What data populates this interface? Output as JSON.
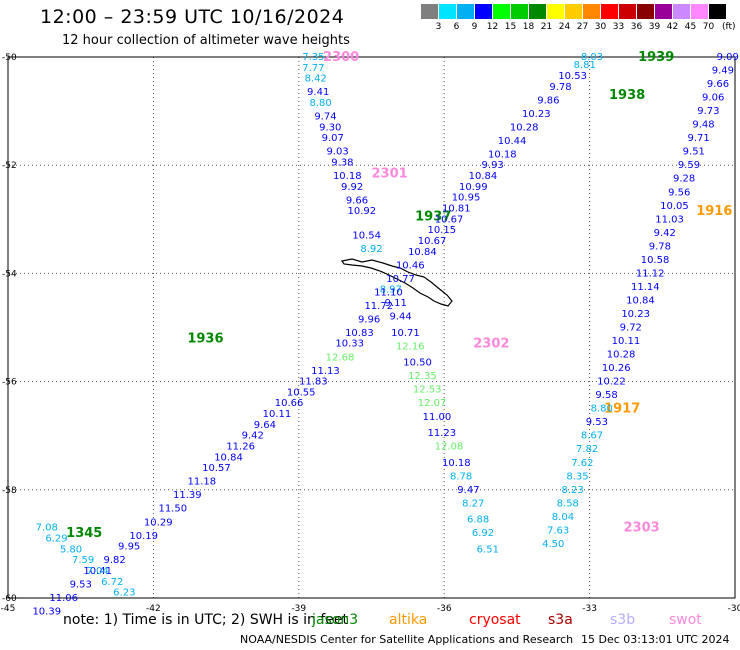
{
  "title": "12:00 – 23:59 UTC 10/16/2024",
  "subtitle": "12 hour collection of altimeter wave heights",
  "legend": {
    "unit": "(ft)",
    "bins": [
      {
        "label": "3",
        "color": "#7f7f7f"
      },
      {
        "label": "6",
        "color": "#00e5ff"
      },
      {
        "label": "9",
        "color": "#00b0f0"
      },
      {
        "label": "12",
        "color": "#0000ff"
      },
      {
        "label": "15",
        "color": "#00ff00"
      },
      {
        "label": "18",
        "color": "#00cc00"
      },
      {
        "label": "21",
        "color": "#008800"
      },
      {
        "label": "24",
        "color": "#ffff00"
      },
      {
        "label": "27",
        "color": "#ffcc00"
      },
      {
        "label": "30",
        "color": "#ff8800"
      },
      {
        "label": "33",
        "color": "#ff0000"
      },
      {
        "label": "36",
        "color": "#cc0000"
      },
      {
        "label": "39",
        "color": "#880000"
      },
      {
        "label": "42",
        "color": "#990099"
      },
      {
        "label": "45",
        "color": "#cc88ff"
      },
      {
        "label": "70",
        "color": "#ff88ff"
      },
      {
        "label": "",
        "color": "#000000"
      }
    ]
  },
  "note": "note:  1) Time is in UTC; 2) SWH is in feet",
  "missions": [
    {
      "name": "jason3",
      "color": "#008800"
    },
    {
      "name": "altika",
      "color": "#ff9900"
    },
    {
      "name": "cryosat",
      "color": "#ff0000"
    },
    {
      "name": "s3a",
      "color": "#aa0000"
    },
    {
      "name": "s3b",
      "color": "#bbaaff"
    },
    {
      "name": "swot",
      "color": "#ff88dd"
    }
  ],
  "credit": "NOAA/NESDIS Center for Satellite Applications and Research",
  "timestamp": "15 Dec 03:13:01 UTC 2024",
  "chart_data": {
    "type": "scatter",
    "xlim": [
      -45,
      -30
    ],
    "ylim": [
      -60,
      -50
    ],
    "x_ticks": [
      "-45",
      "-42",
      "-39",
      "-36",
      "-33",
      "-30"
    ],
    "y_ticks": [
      "-50",
      "-52",
      "-54",
      "-56",
      "-58",
      "-60"
    ],
    "grid": "dotted",
    "tracks": [
      {
        "time": "2300",
        "color": "#ff88dd",
        "at": [
          -38.5,
          -50.0
        ]
      },
      {
        "time": "2301",
        "color": "#ff88dd",
        "at": [
          -37.5,
          -52.15
        ]
      },
      {
        "time": "2302",
        "color": "#ff88dd",
        "at": [
          -35.4,
          -55.3
        ]
      },
      {
        "time": "2303",
        "color": "#ff88dd",
        "at": [
          -32.3,
          -58.7
        ]
      },
      {
        "time": "1939",
        "color": "#008800",
        "at": [
          -32.0,
          -50.0
        ]
      },
      {
        "time": "1938",
        "color": "#008800",
        "at": [
          -32.6,
          -50.7
        ]
      },
      {
        "time": "1937",
        "color": "#008800",
        "at": [
          -36.6,
          -52.95
        ]
      },
      {
        "time": "1936",
        "color": "#008800",
        "at": [
          -41.3,
          -55.2
        ]
      },
      {
        "time": "1345",
        "color": "#008800",
        "at": [
          -43.8,
          -58.8
        ]
      },
      {
        "time": "1916",
        "color": "#ff9900",
        "at": [
          -30.8,
          -52.85
        ]
      },
      {
        "time": "1917",
        "color": "#ff9900",
        "at": [
          -32.7,
          -56.5
        ]
      }
    ],
    "points": [
      {
        "x": -38.7,
        "y": -50.0,
        "v": "7.35",
        "c": "#00b0f0"
      },
      {
        "x": -38.7,
        "y": -50.2,
        "v": "7.77",
        "c": "#00b0f0"
      },
      {
        "x": -38.65,
        "y": -50.4,
        "v": "8.42",
        "c": "#00b0f0"
      },
      {
        "x": -38.6,
        "y": -50.65,
        "v": "9.41",
        "c": "#0000ff"
      },
      {
        "x": -38.55,
        "y": -50.85,
        "v": "8.80",
        "c": "#00b0f0"
      },
      {
        "x": -38.45,
        "y": -51.1,
        "v": "9.74",
        "c": "#0000ff"
      },
      {
        "x": -38.35,
        "y": -51.3,
        "v": "9.30",
        "c": "#0000ff"
      },
      {
        "x": -38.3,
        "y": -51.5,
        "v": "9.07",
        "c": "#0000ff"
      },
      {
        "x": -38.2,
        "y": -51.75,
        "v": "9.03",
        "c": "#0000ff"
      },
      {
        "x": -38.1,
        "y": -51.95,
        "v": "9.38",
        "c": "#0000ff"
      },
      {
        "x": -38.0,
        "y": -52.2,
        "v": "10.18",
        "c": "#0000ff"
      },
      {
        "x": -37.9,
        "y": -52.4,
        "v": "9.92",
        "c": "#0000ff"
      },
      {
        "x": -37.8,
        "y": -52.65,
        "v": "9.66",
        "c": "#0000ff"
      },
      {
        "x": -37.7,
        "y": -52.85,
        "v": "10.92",
        "c": "#0000ff"
      },
      {
        "x": -37.6,
        "y": -53.3,
        "v": "10.54",
        "c": "#0000ff"
      },
      {
        "x": -37.5,
        "y": -53.55,
        "v": "8.92",
        "c": "#00b0f0"
      },
      {
        "x": -37.1,
        "y": -54.3,
        "v": "8.97",
        "c": "#00b0f0"
      },
      {
        "x": -37.0,
        "y": -54.55,
        "v": "9.11",
        "c": "#0000ff"
      },
      {
        "x": -36.9,
        "y": -54.8,
        "v": "9.44",
        "c": "#0000ff"
      },
      {
        "x": -36.8,
        "y": -55.1,
        "v": "10.71",
        "c": "#0000ff"
      },
      {
        "x": -36.7,
        "y": -55.35,
        "v": "12.16",
        "c": "#66ee66"
      },
      {
        "x": -36.55,
        "y": -55.65,
        "v": "10.50",
        "c": "#0000ff"
      },
      {
        "x": -36.45,
        "y": -55.9,
        "v": "12.35",
        "c": "#66ee66"
      },
      {
        "x": -36.35,
        "y": -56.15,
        "v": "12.53",
        "c": "#66ee66"
      },
      {
        "x": -36.25,
        "y": -56.4,
        "v": "12.07",
        "c": "#66ee66"
      },
      {
        "x": -36.15,
        "y": -56.65,
        "v": "11.00",
        "c": "#0000ff"
      },
      {
        "x": -36.05,
        "y": -56.95,
        "v": "11.23",
        "c": "#0000ff"
      },
      {
        "x": -35.9,
        "y": -57.2,
        "v": "12.08",
        "c": "#66ee66"
      },
      {
        "x": -35.75,
        "y": -57.5,
        "v": "10.18",
        "c": "#0000ff"
      },
      {
        "x": -35.65,
        "y": -57.75,
        "v": "8.78",
        "c": "#00b0f0"
      },
      {
        "x": -35.5,
        "y": -58.0,
        "v": "9.47",
        "c": "#0000ff"
      },
      {
        "x": -35.4,
        "y": -58.25,
        "v": "8.27",
        "c": "#00b0f0"
      },
      {
        "x": -35.3,
        "y": -58.55,
        "v": "6.88",
        "c": "#00b0f0"
      },
      {
        "x": -35.2,
        "y": -58.8,
        "v": "6.92",
        "c": "#00b0f0"
      },
      {
        "x": -35.1,
        "y": -59.1,
        "v": "6.51",
        "c": "#00b0f0"
      },
      {
        "x": -32.95,
        "y": -50.0,
        "v": "8.03",
        "c": "#00b0f0"
      },
      {
        "x": -33.1,
        "y": -50.15,
        "v": "8.81",
        "c": "#00b0f0"
      },
      {
        "x": -33.35,
        "y": -50.35,
        "v": "10.53",
        "c": "#0000ff"
      },
      {
        "x": -33.6,
        "y": -50.55,
        "v": "9.78",
        "c": "#0000ff"
      },
      {
        "x": -33.85,
        "y": -50.8,
        "v": "9.86",
        "c": "#0000ff"
      },
      {
        "x": -34.1,
        "y": -51.05,
        "v": "10.23",
        "c": "#0000ff"
      },
      {
        "x": -34.35,
        "y": -51.3,
        "v": "10.28",
        "c": "#0000ff"
      },
      {
        "x": -34.6,
        "y": -51.55,
        "v": "10.44",
        "c": "#0000ff"
      },
      {
        "x": -34.8,
        "y": -51.8,
        "v": "10.18",
        "c": "#0000ff"
      },
      {
        "x": -35.0,
        "y": -52.0,
        "v": "9.93",
        "c": "#0000ff"
      },
      {
        "x": -35.2,
        "y": -52.2,
        "v": "10.84",
        "c": "#0000ff"
      },
      {
        "x": -35.4,
        "y": -52.4,
        "v": "10.99",
        "c": "#0000ff"
      },
      {
        "x": -35.55,
        "y": -52.6,
        "v": "10.95",
        "c": "#0000ff"
      },
      {
        "x": -35.75,
        "y": -52.8,
        "v": "10.81",
        "c": "#0000ff"
      },
      {
        "x": -35.9,
        "y": -53.0,
        "v": "10.67",
        "c": "#0000ff"
      },
      {
        "x": -36.05,
        "y": -53.2,
        "v": "10.15",
        "c": "#0000ff"
      },
      {
        "x": -36.25,
        "y": -53.4,
        "v": "10.67",
        "c": "#0000ff"
      },
      {
        "x": -36.45,
        "y": -53.6,
        "v": "10.84",
        "c": "#0000ff"
      },
      {
        "x": -36.7,
        "y": -53.85,
        "v": "10.46",
        "c": "#0000ff"
      },
      {
        "x": -36.9,
        "y": -54.1,
        "v": "10.77",
        "c": "#0000ff"
      },
      {
        "x": -37.15,
        "y": -54.35,
        "v": "11.10",
        "c": "#0000ff"
      },
      {
        "x": -37.35,
        "y": -54.6,
        "v": "11.72",
        "c": "#0000ff"
      },
      {
        "x": -37.55,
        "y": -54.85,
        "v": "9.96",
        "c": "#0000ff"
      },
      {
        "x": -37.75,
        "y": -55.1,
        "v": "10.83",
        "c": "#0000ff"
      },
      {
        "x": -37.95,
        "y": -55.3,
        "v": "10.33",
        "c": "#0000ff"
      },
      {
        "x": -38.15,
        "y": -55.55,
        "v": "12.68",
        "c": "#66ee66"
      },
      {
        "x": -38.45,
        "y": -55.8,
        "v": "11.13",
        "c": "#0000ff"
      },
      {
        "x": -38.7,
        "y": -56.0,
        "v": "11.83",
        "c": "#0000ff"
      },
      {
        "x": -38.95,
        "y": -56.2,
        "v": "10.55",
        "c": "#0000ff"
      },
      {
        "x": -39.2,
        "y": -56.4,
        "v": "10.66",
        "c": "#0000ff"
      },
      {
        "x": -39.45,
        "y": -56.6,
        "v": "10.11",
        "c": "#0000ff"
      },
      {
        "x": -39.7,
        "y": -56.8,
        "v": "9.64",
        "c": "#0000ff"
      },
      {
        "x": -39.95,
        "y": -57.0,
        "v": "9.42",
        "c": "#0000ff"
      },
      {
        "x": -40.2,
        "y": -57.2,
        "v": "11.26",
        "c": "#0000ff"
      },
      {
        "x": -40.45,
        "y": -57.4,
        "v": "10.84",
        "c": "#0000ff"
      },
      {
        "x": -40.7,
        "y": -57.6,
        "v": "10.57",
        "c": "#0000ff"
      },
      {
        "x": -41.0,
        "y": -57.85,
        "v": "11.18",
        "c": "#0000ff"
      },
      {
        "x": -41.3,
        "y": -58.1,
        "v": "11.39",
        "c": "#0000ff"
      },
      {
        "x": -41.6,
        "y": -58.35,
        "v": "11.50",
        "c": "#0000ff"
      },
      {
        "x": -41.9,
        "y": -58.6,
        "v": "10.29",
        "c": "#0000ff"
      },
      {
        "x": -42.2,
        "y": -58.85,
        "v": "10.19",
        "c": "#0000ff"
      },
      {
        "x": -42.5,
        "y": -59.05,
        "v": "9.95",
        "c": "#0000ff"
      },
      {
        "x": -42.8,
        "y": -59.3,
        "v": "9.82",
        "c": "#0000ff"
      },
      {
        "x": -43.15,
        "y": -59.5,
        "v": "10.41",
        "c": "#0000ff"
      },
      {
        "x": -43.5,
        "y": -59.75,
        "v": "9.53",
        "c": "#0000ff"
      },
      {
        "x": -43.85,
        "y": -60.0,
        "v": "11.06",
        "c": "#0000ff"
      },
      {
        "x": -44.2,
        "y": -60.25,
        "v": "10.39",
        "c": "#0000ff"
      },
      {
        "x": -44.2,
        "y": -58.7,
        "v": "7.08",
        "c": "#00b0f0"
      },
      {
        "x": -44.0,
        "y": -58.9,
        "v": "6.29",
        "c": "#00b0f0"
      },
      {
        "x": -43.7,
        "y": -59.1,
        "v": "5.80",
        "c": "#00b0f0"
      },
      {
        "x": -43.45,
        "y": -59.3,
        "v": "7.59",
        "c": "#00b0f0"
      },
      {
        "x": -43.15,
        "y": -59.5,
        "v": "7.04",
        "c": "#00b0f0"
      },
      {
        "x": -42.85,
        "y": -59.7,
        "v": "6.72",
        "c": "#00b0f0"
      },
      {
        "x": -42.6,
        "y": -59.9,
        "v": "6.23",
        "c": "#00b0f0"
      },
      {
        "x": -30.15,
        "y": -50.0,
        "v": "9.09",
        "c": "#0000ff"
      },
      {
        "x": -30.25,
        "y": -50.25,
        "v": "9.49",
        "c": "#0000ff"
      },
      {
        "x": -30.35,
        "y": -50.5,
        "v": "9.66",
        "c": "#0000ff"
      },
      {
        "x": -30.45,
        "y": -50.75,
        "v": "9.06",
        "c": "#0000ff"
      },
      {
        "x": -30.55,
        "y": -51.0,
        "v": "9.73",
        "c": "#0000ff"
      },
      {
        "x": -30.65,
        "y": -51.25,
        "v": "9.48",
        "c": "#0000ff"
      },
      {
        "x": -30.75,
        "y": -51.5,
        "v": "9.71",
        "c": "#0000ff"
      },
      {
        "x": -30.85,
        "y": -51.75,
        "v": "9.51",
        "c": "#0000ff"
      },
      {
        "x": -30.95,
        "y": -52.0,
        "v": "9.59",
        "c": "#0000ff"
      },
      {
        "x": -31.05,
        "y": -52.25,
        "v": "9.28",
        "c": "#0000ff"
      },
      {
        "x": -31.15,
        "y": -52.5,
        "v": "9.56",
        "c": "#0000ff"
      },
      {
        "x": -31.25,
        "y": -52.75,
        "v": "10.05",
        "c": "#0000ff"
      },
      {
        "x": -31.35,
        "y": -53.0,
        "v": "11.03",
        "c": "#0000ff"
      },
      {
        "x": -31.45,
        "y": -53.25,
        "v": "9.42",
        "c": "#0000ff"
      },
      {
        "x": -31.55,
        "y": -53.5,
        "v": "9.78",
        "c": "#0000ff"
      },
      {
        "x": -31.65,
        "y": -53.75,
        "v": "10.58",
        "c": "#0000ff"
      },
      {
        "x": -31.75,
        "y": -54.0,
        "v": "11.12",
        "c": "#0000ff"
      },
      {
        "x": -31.85,
        "y": -54.25,
        "v": "11.14",
        "c": "#0000ff"
      },
      {
        "x": -31.95,
        "y": -54.5,
        "v": "10.84",
        "c": "#0000ff"
      },
      {
        "x": -32.05,
        "y": -54.75,
        "v": "10.23",
        "c": "#0000ff"
      },
      {
        "x": -32.15,
        "y": -55.0,
        "v": "9.72",
        "c": "#0000ff"
      },
      {
        "x": -32.25,
        "y": -55.25,
        "v": "10.11",
        "c": "#0000ff"
      },
      {
        "x": -32.35,
        "y": -55.5,
        "v": "10.28",
        "c": "#0000ff"
      },
      {
        "x": -32.45,
        "y": -55.75,
        "v": "10.26",
        "c": "#0000ff"
      },
      {
        "x": -32.55,
        "y": -56.0,
        "v": "10.22",
        "c": "#0000ff"
      },
      {
        "x": -32.65,
        "y": -56.25,
        "v": "9.58",
        "c": "#0000ff"
      },
      {
        "x": -32.75,
        "y": -56.5,
        "v": "8.80",
        "c": "#00b0f0"
      },
      {
        "x": -32.85,
        "y": -56.75,
        "v": "9.53",
        "c": "#0000ff"
      },
      {
        "x": -32.95,
        "y": -57.0,
        "v": "8.67",
        "c": "#00b0f0"
      },
      {
        "x": -33.05,
        "y": -57.25,
        "v": "7.82",
        "c": "#00b0f0"
      },
      {
        "x": -33.15,
        "y": -57.5,
        "v": "7.62",
        "c": "#00b0f0"
      },
      {
        "x": -33.25,
        "y": -57.75,
        "v": "8.35",
        "c": "#00b0f0"
      },
      {
        "x": -33.35,
        "y": -58.0,
        "v": "8.23",
        "c": "#00b0f0"
      },
      {
        "x": -33.45,
        "y": -58.25,
        "v": "8.58",
        "c": "#00b0f0"
      },
      {
        "x": -33.55,
        "y": -58.5,
        "v": "8.04",
        "c": "#00b0f0"
      },
      {
        "x": -33.65,
        "y": -58.75,
        "v": "7.63",
        "c": "#00b0f0"
      },
      {
        "x": -33.75,
        "y": -59.0,
        "v": "4.50",
        "c": "#00b0f0"
      }
    ]
  }
}
